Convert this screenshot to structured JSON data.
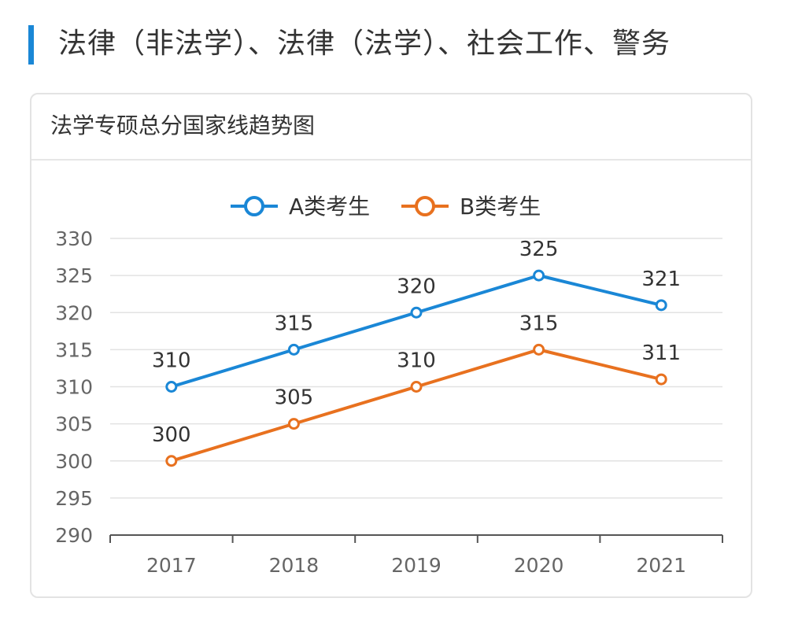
{
  "page": {
    "section_title": "法律（非法学）、法律（法学）、社会工作、警务",
    "accent_color": "#1a87d6"
  },
  "card": {
    "title": "法学专硕总分国家线趋势图"
  },
  "chart_data": {
    "type": "line",
    "title": "法学专硕总分国家线趋势图",
    "categories": [
      "2017",
      "2018",
      "2019",
      "2020",
      "2021"
    ],
    "series": [
      {
        "name": "A类考生",
        "color": "#1a87d6",
        "values": [
          310,
          315,
          320,
          325,
          321
        ]
      },
      {
        "name": "B类考生",
        "color": "#e8711f",
        "values": [
          300,
          305,
          310,
          315,
          311
        ]
      }
    ],
    "ylim": [
      290,
      330
    ],
    "yticks": [
      290,
      295,
      300,
      305,
      310,
      315,
      320,
      325,
      330
    ],
    "xlabel": "",
    "ylabel": "",
    "grid": true,
    "legend": "top-center",
    "data_labels": true
  }
}
